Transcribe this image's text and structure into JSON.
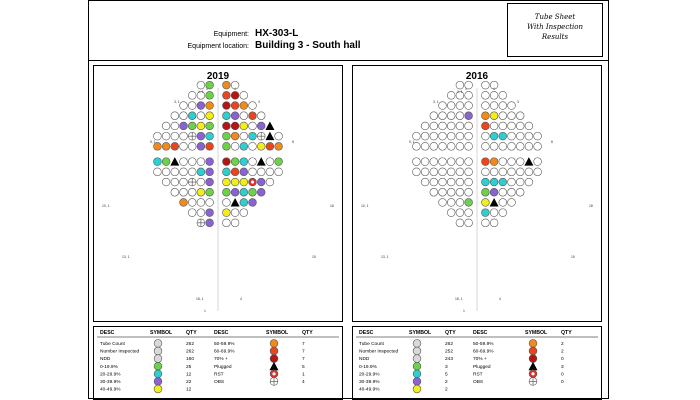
{
  "header": {
    "equipment_label": "Equipment:",
    "equipment_value": "HX-303-L",
    "location_label": "Equipment location:",
    "location_value": "Building 3 - South hall",
    "title_lines": [
      "Tube Sheet",
      "With Inspection",
      "Results"
    ]
  },
  "colors": {
    "ndd": "#d9d9d9",
    "r0_19": "#6ed14a",
    "r20_29": "#2ecfd1",
    "r30_39": "#8a63d2",
    "r40_49": "#f2ee1c",
    "r50_59": "#f08a1c",
    "r60_69": "#e8461e",
    "r70": "#b71414",
    "plugged": "#000000",
    "rst": "#e0302a"
  },
  "row_labels": {
    "r1": "1, 1",
    "r1b": "1",
    "r1c": "4",
    "r2": "3, 1",
    "r2b": "3",
    "r3": "5, 1",
    "r3b": "8",
    "r4": "10, 1",
    "r4b": "18",
    "r5": "13, 1",
    "r5b": "15",
    "r6": "18, 1",
    "r6b": "4",
    "r7": "1"
  },
  "panels": [
    {
      "year": "2019",
      "legend": {
        "headers": [
          "DESC",
          "SYMBOL",
          "QTY",
          "DESC",
          "SYMBOL",
          "QTY"
        ],
        "left": [
          {
            "desc": "Tube Count",
            "sym": "ndd",
            "qty": "262"
          },
          {
            "desc": "Number Inspected",
            "sym": "ndd",
            "qty": "262"
          },
          {
            "desc": "NDD",
            "sym": "ndd",
            "qty": "160"
          },
          {
            "desc": "0-19.9%",
            "sym": "r0_19",
            "qty": "25"
          },
          {
            "desc": "20-29.9%",
            "sym": "r20_29",
            "qty": "12"
          },
          {
            "desc": "30-39.9%",
            "sym": "r30_39",
            "qty": "22"
          },
          {
            "desc": "40-49.9%",
            "sym": "r40_49",
            "qty": "12"
          }
        ],
        "right": [
          {
            "desc": "50-59.9%",
            "sym": "r50_59",
            "qty": "7"
          },
          {
            "desc": "60-69.9%",
            "sym": "r60_69",
            "qty": "7"
          },
          {
            "desc": "70% +",
            "sym": "r70",
            "qty": "7"
          },
          {
            "desc": "Plugged",
            "sym": "plugged",
            "qty": "5"
          },
          {
            "desc": "RST",
            "sym": "rst",
            "qty": "1"
          },
          {
            "desc": "OBS",
            "sym": "obs",
            "qty": "4"
          }
        ]
      }
    },
    {
      "year": "2016",
      "legend": {
        "headers": [
          "DESC",
          "SYMBOL",
          "QTY",
          "DESC",
          "SYMBOL",
          "QTY"
        ],
        "left": [
          {
            "desc": "Tube Count",
            "sym": "ndd",
            "qty": "262"
          },
          {
            "desc": "Number Inspected",
            "sym": "ndd",
            "qty": "252"
          },
          {
            "desc": "NDD",
            "sym": "ndd",
            "qty": "243"
          },
          {
            "desc": "0-19.9%",
            "sym": "r0_19",
            "qty": "3"
          },
          {
            "desc": "20-29.9%",
            "sym": "r20_29",
            "qty": "5"
          },
          {
            "desc": "30-39.9%",
            "sym": "r30_39",
            "qty": "2"
          },
          {
            "desc": "40-49.9%",
            "sym": "r40_49",
            "qty": "2"
          }
        ],
        "right": [
          {
            "desc": "50-59.9%",
            "sym": "r50_59",
            "qty": "2"
          },
          {
            "desc": "60-69.9%",
            "sym": "r60_69",
            "qty": "2"
          },
          {
            "desc": "70% +",
            "sym": "r70",
            "qty": "0"
          },
          {
            "desc": "Plugged",
            "sym": "plugged",
            "qty": "3"
          },
          {
            "desc": "RST",
            "sym": "rst",
            "qty": "0"
          },
          {
            "desc": "OBS",
            "sym": "obs",
            "qty": "0"
          }
        ]
      }
    }
  ]
}
